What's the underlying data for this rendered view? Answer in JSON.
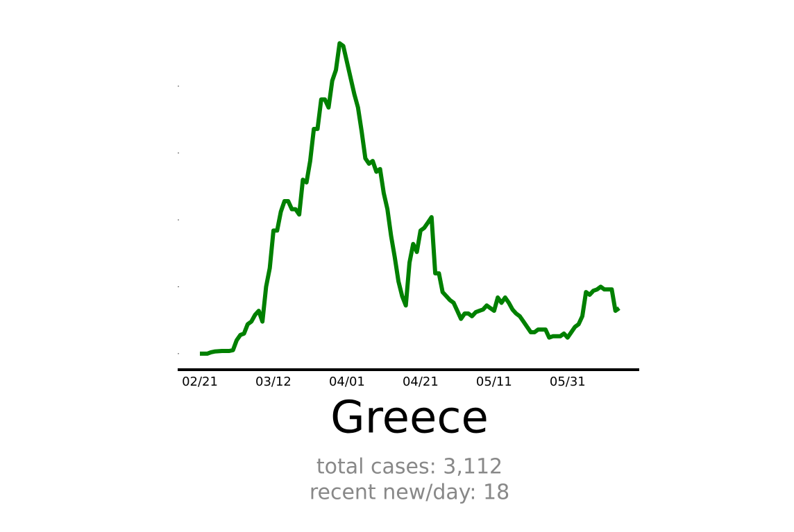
{
  "chart_data": {
    "type": "line",
    "title": "Greece",
    "annotations": [
      "total cases: 3,112",
      "recent new/day: 18"
    ],
    "x": [
      "02/21",
      "02/22",
      "02/23",
      "02/24",
      "02/25",
      "02/26",
      "02/27",
      "02/28",
      "02/29",
      "03/01",
      "03/02",
      "03/03",
      "03/04",
      "03/05",
      "03/06",
      "03/07",
      "03/08",
      "03/09",
      "03/10",
      "03/11",
      "03/12",
      "03/13",
      "03/14",
      "03/15",
      "03/16",
      "03/17",
      "03/18",
      "03/19",
      "03/20",
      "03/21",
      "03/22",
      "03/23",
      "03/24",
      "03/25",
      "03/26",
      "03/27",
      "03/28",
      "03/29",
      "03/30",
      "03/31",
      "04/01",
      "04/02",
      "04/03",
      "04/04",
      "04/05",
      "04/06",
      "04/07",
      "04/08",
      "04/09",
      "04/10",
      "04/11",
      "04/12",
      "04/13",
      "04/14",
      "04/15",
      "04/16",
      "04/17",
      "04/18",
      "04/19",
      "04/20",
      "04/21",
      "04/22",
      "04/23",
      "04/24",
      "04/25",
      "04/26",
      "04/27",
      "04/28",
      "04/29",
      "04/30",
      "05/01",
      "05/02",
      "05/03",
      "05/04",
      "05/05",
      "05/06",
      "05/07",
      "05/08",
      "05/09",
      "05/10",
      "05/11",
      "05/12",
      "05/13",
      "05/14",
      "05/15",
      "05/16",
      "05/17",
      "05/18",
      "05/19",
      "05/20",
      "05/21",
      "05/22",
      "05/23",
      "05/24",
      "05/25",
      "05/26",
      "05/27",
      "05/28",
      "05/29",
      "05/30",
      "05/31",
      "06/01",
      "06/02",
      "06/03",
      "06/04",
      "06/05",
      "06/06",
      "06/07",
      "06/08",
      "06/09",
      "06/10",
      "06/11",
      "06/12",
      "06/13",
      "06/14"
    ],
    "series": [
      {
        "color": "#008000",
        "values": [
          0,
          0,
          0,
          0.5,
          0.8,
          0.9,
          1,
          1,
          1,
          1.3,
          5,
          7,
          7.5,
          11,
          12,
          14.5,
          16,
          12,
          25,
          32,
          46,
          46,
          53,
          57,
          57,
          54,
          54,
          52,
          65,
          64,
          72,
          84,
          84,
          95,
          95,
          92,
          102,
          106,
          116,
          115,
          109,
          103,
          97,
          92,
          83,
          73,
          71,
          72,
          68,
          69,
          60,
          54,
          44,
          36,
          27,
          21.5,
          18,
          34,
          41,
          38,
          46,
          47,
          49,
          51,
          30,
          30,
          23,
          21.5,
          20,
          19,
          16,
          13,
          15,
          15,
          14,
          15.5,
          16,
          16.5,
          18,
          17,
          16,
          21,
          19,
          21,
          19,
          16.5,
          15,
          14,
          12,
          10,
          8,
          8,
          9,
          9,
          9,
          6,
          6.5,
          6.5,
          6.5,
          7.5,
          6,
          8,
          10,
          11,
          14,
          23,
          22,
          23.5,
          24,
          25,
          24,
          24,
          24,
          16,
          17
        ]
      }
    ],
    "xticks": [
      "02/21",
      "03/12",
      "04/01",
      "04/21",
      "05/11",
      "05/31"
    ],
    "ylim": [
      -6,
      120
    ],
    "yticks": [
      0,
      25,
      50,
      75,
      100
    ]
  }
}
